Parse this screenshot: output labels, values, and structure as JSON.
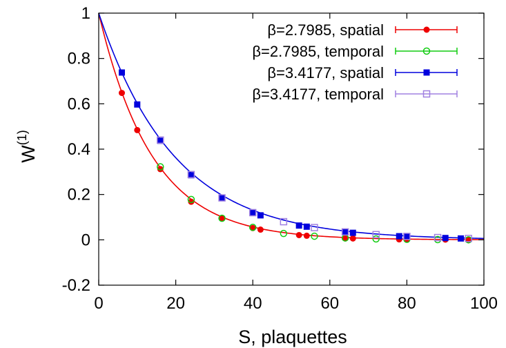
{
  "chart_data": {
    "type": "scatter",
    "xlabel": "S, plaquettes",
    "ylabel": "W",
    "ylabel_superscript": "(1)",
    "xlim": [
      0,
      100
    ],
    "ylim": [
      -0.2,
      1
    ],
    "x_ticks": [
      0,
      20,
      40,
      60,
      80,
      100
    ],
    "y_ticks": [
      -0.2,
      0,
      0.2,
      0.4,
      0.6,
      0.8,
      1
    ],
    "x_tick_labels": [
      "0",
      "20",
      "40",
      "60",
      "80",
      "100"
    ],
    "y_tick_labels": [
      "-0.2",
      "0",
      "0.2",
      "0.4",
      "0.6",
      "0.8",
      "1"
    ],
    "legend_position": "top-right",
    "series": [
      {
        "name": "β=2.7985, spatial",
        "color": "#ee0000",
        "marker": "filled-circle",
        "x": [
          6,
          10,
          16,
          24,
          32,
          40,
          42,
          52,
          54,
          64,
          66,
          78,
          80,
          90,
          96
        ],
        "y": [
          0.648,
          0.484,
          0.312,
          0.168,
          0.094,
          0.052,
          0.045,
          0.021,
          0.018,
          0.007,
          0.006,
          0.002,
          0.002,
          0.001,
          0.0
        ]
      },
      {
        "name": "β=2.7985, temporal",
        "color": "#11cc11",
        "marker": "open-circle",
        "x": [
          16,
          24,
          32,
          40,
          48,
          56,
          64,
          72,
          80,
          88,
          96
        ],
        "y": [
          0.322,
          0.178,
          0.095,
          0.055,
          0.028,
          0.016,
          0.008,
          0.004,
          0.002,
          0.001,
          0.0
        ]
      },
      {
        "name": "β=3.4177, spatial",
        "color": "#0000dd",
        "marker": "filled-square",
        "x": [
          6,
          10,
          16,
          24,
          32,
          40,
          42,
          52,
          54,
          64,
          66,
          78,
          80,
          90,
          94
        ],
        "y": [
          0.738,
          0.597,
          0.437,
          0.285,
          0.186,
          0.118,
          0.108,
          0.063,
          0.058,
          0.034,
          0.031,
          0.016,
          0.014,
          0.008,
          0.006
        ]
      },
      {
        "name": "β=3.4177, temporal",
        "color": "#a080e0",
        "marker": "open-square",
        "x": [
          16,
          24,
          32,
          40,
          48,
          56,
          64,
          72,
          80,
          88,
          96
        ],
        "y": [
          0.44,
          0.288,
          0.185,
          0.12,
          0.08,
          0.054,
          0.035,
          0.023,
          0.015,
          0.01,
          0.006
        ]
      }
    ],
    "fits": [
      {
        "series": "β=2.7985",
        "color": "#ee0000",
        "a": 0.0717
      },
      {
        "series": "β=3.4177",
        "color": "#0000dd",
        "a": 0.0508
      }
    ]
  }
}
